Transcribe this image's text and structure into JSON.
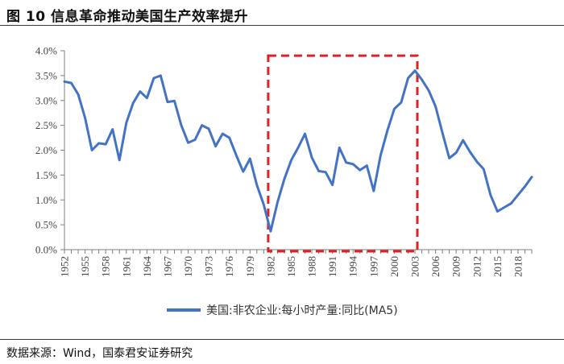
{
  "title": "图 10  信息革命推动美国生产效率提升",
  "source": "数据来源：Wind，国泰君安证券研究",
  "colors": {
    "series": "#4472C4",
    "highlight": "#E02020",
    "axis": "#7f7f7f"
  },
  "chart_data": {
    "type": "line",
    "ylim": [
      0.0,
      4.0
    ],
    "y_ticks": [
      "0.0%",
      "0.5%",
      "1.0%",
      "1.5%",
      "2.0%",
      "2.5%",
      "3.0%",
      "3.5%",
      "4.0%"
    ],
    "x_ticks": [
      "1952",
      "1955",
      "1958",
      "1961",
      "1964",
      "1967",
      "1970",
      "1973",
      "1976",
      "1979",
      "1982",
      "1985",
      "1988",
      "1991",
      "1994",
      "1997",
      "2000",
      "2003",
      "2006",
      "2009",
      "2012",
      "2015",
      "2018"
    ],
    "xlim": [
      1952,
      2020
    ],
    "grid": false,
    "legend_position": "bottom",
    "highlight_box": {
      "x_range": [
        1982,
        2003
      ],
      "y_range": [
        0.0,
        3.9
      ]
    },
    "series": [
      {
        "name": "美国:非农企业:每小时产量:同比(MA5)",
        "x": [
          1952,
          1953,
          1954,
          1955,
          1956,
          1957,
          1958,
          1959,
          1960,
          1961,
          1962,
          1963,
          1964,
          1965,
          1966,
          1967,
          1968,
          1969,
          1970,
          1971,
          1972,
          1973,
          1974,
          1975,
          1976,
          1977,
          1978,
          1979,
          1980,
          1981,
          1982,
          1983,
          1984,
          1985,
          1986,
          1987,
          1988,
          1989,
          1990,
          1991,
          1992,
          1993,
          1994,
          1995,
          1996,
          1997,
          1998,
          1999,
          2000,
          2001,
          2002,
          2003,
          2004,
          2005,
          2006,
          2007,
          2008,
          2009,
          2010,
          2011,
          2012,
          2013,
          2014,
          2015,
          2016,
          2017,
          2018,
          2019,
          2020
        ],
        "values": [
          3.38,
          3.35,
          3.12,
          2.65,
          2.0,
          2.14,
          2.12,
          2.42,
          1.8,
          2.55,
          2.95,
          3.18,
          3.05,
          3.45,
          3.5,
          2.97,
          2.99,
          2.5,
          2.15,
          2.21,
          2.5,
          2.43,
          2.08,
          2.33,
          2.25,
          1.9,
          1.57,
          1.83,
          1.3,
          0.9,
          0.37,
          0.95,
          1.42,
          1.8,
          2.05,
          2.33,
          1.85,
          1.58,
          1.56,
          1.3,
          2.05,
          1.75,
          1.72,
          1.6,
          1.69,
          1.18,
          1.9,
          2.4,
          2.83,
          2.96,
          3.45,
          3.6,
          3.42,
          3.2,
          2.88,
          2.35,
          1.84,
          1.95,
          2.2,
          1.97,
          1.77,
          1.62,
          1.1,
          0.77,
          0.85,
          0.93,
          1.1,
          1.27,
          1.46
        ]
      }
    ]
  }
}
